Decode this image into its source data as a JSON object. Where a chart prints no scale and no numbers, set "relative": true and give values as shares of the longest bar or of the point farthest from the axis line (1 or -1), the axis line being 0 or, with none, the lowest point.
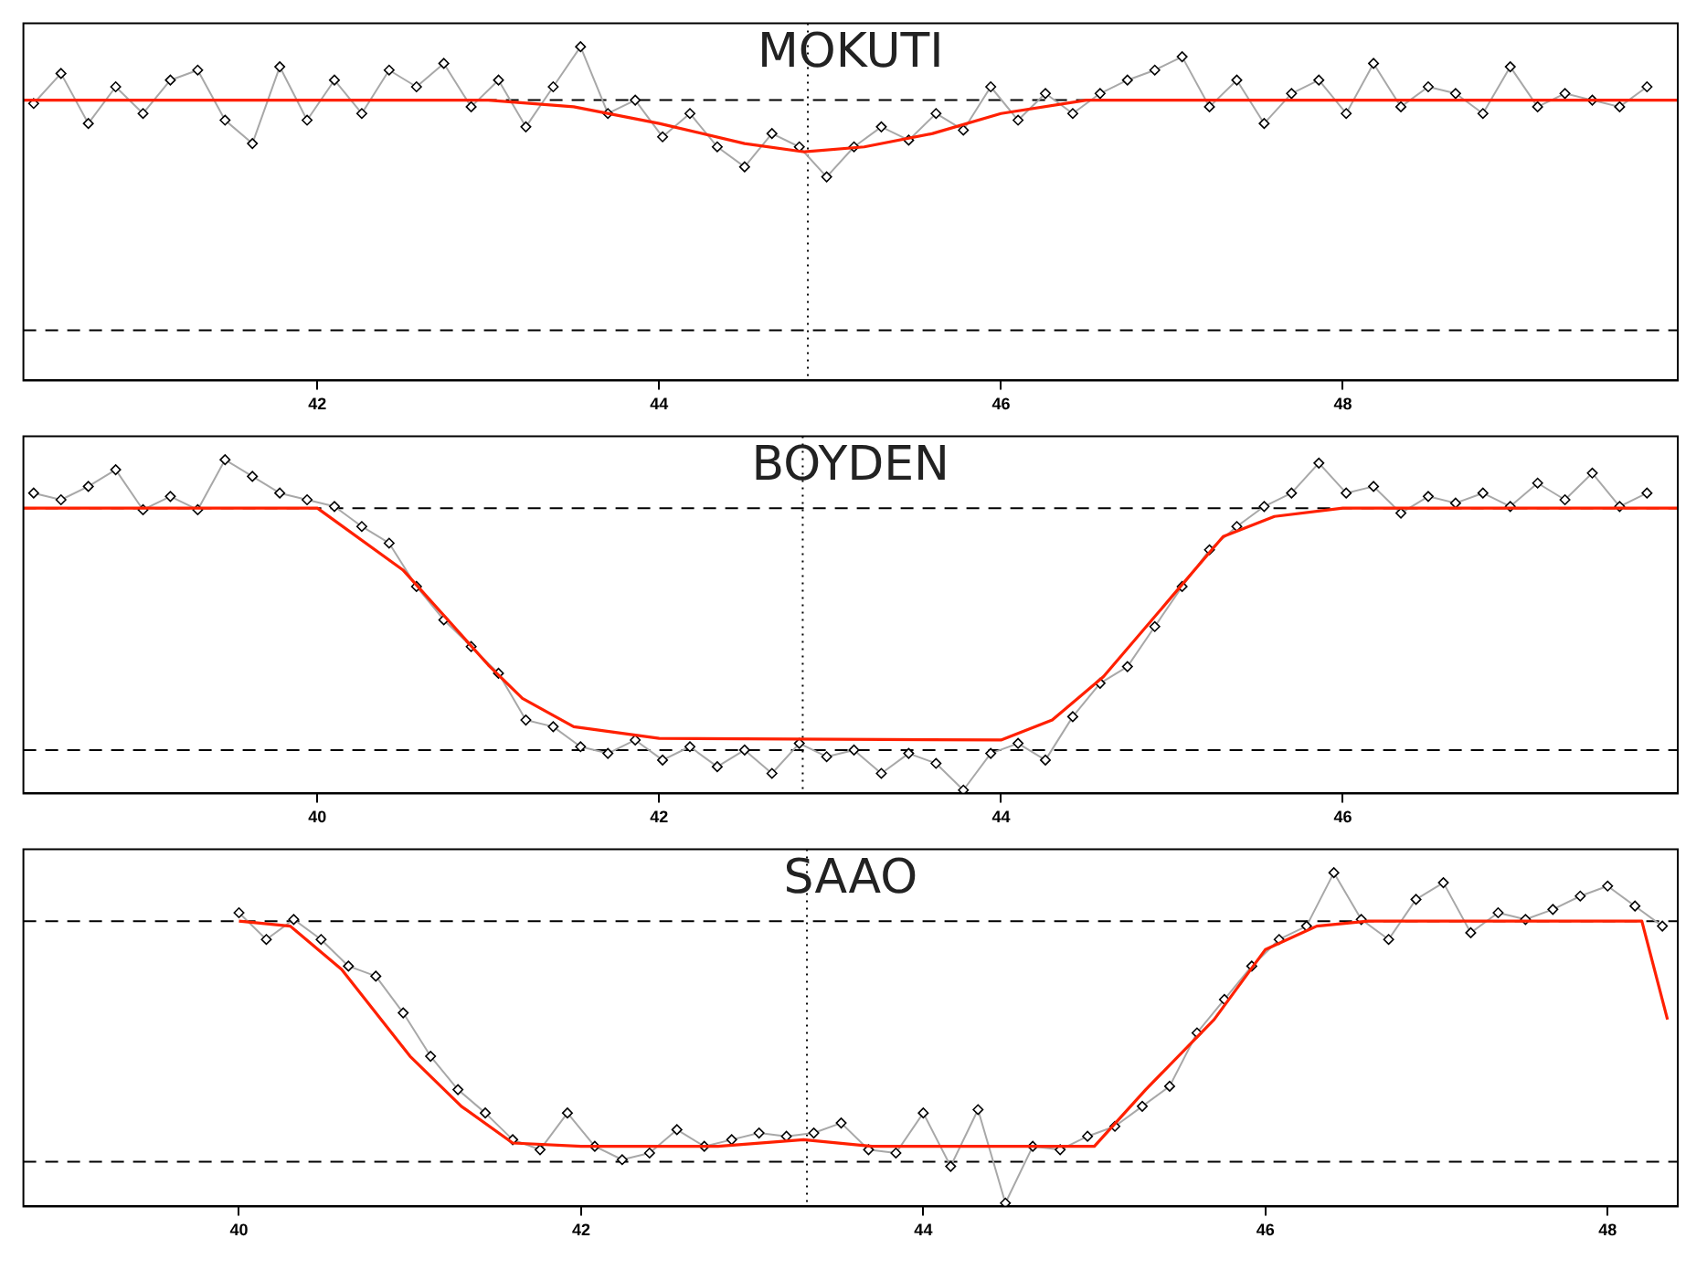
{
  "chart_data": [
    {
      "type": "line",
      "title": "MOKUTI",
      "relative": true,
      "xlim": [
        40.28,
        49.96
      ],
      "xticks": [
        42,
        44,
        46,
        48
      ],
      "grid": false,
      "legend": false,
      "tick_labels": "x",
      "series": [
        {
          "color": "#a8a8a8",
          "marker": "diamond",
          "x": [
            40.34,
            40.5,
            40.66,
            40.82,
            40.98,
            41.14,
            41.3,
            41.46,
            41.62,
            41.78,
            41.94,
            42.1,
            42.26,
            42.42,
            42.58,
            42.74,
            42.9,
            43.06,
            43.22,
            43.38,
            43.54,
            43.7,
            43.86,
            44.02,
            44.18,
            44.34,
            44.5,
            44.66,
            44.82,
            44.98,
            45.14,
            45.3,
            45.46,
            45.62,
            45.78,
            45.94,
            46.1,
            46.26,
            46.42,
            46.58,
            46.74,
            46.9,
            47.06,
            47.22,
            47.38,
            47.54,
            47.7,
            47.86,
            48.02,
            48.18,
            48.34,
            48.5,
            48.66,
            48.82,
            48.98,
            49.14,
            49.3,
            49.46,
            49.62,
            49.78
          ],
          "values": [
            0.83,
            0.92,
            0.77,
            0.88,
            0.8,
            0.9,
            0.93,
            0.78,
            0.71,
            0.94,
            0.78,
            0.9,
            0.8,
            0.93,
            0.88,
            0.95,
            0.82,
            0.9,
            0.76,
            0.88,
            1.0,
            0.8,
            0.84,
            0.73,
            0.8,
            0.7,
            0.64,
            0.74,
            0.7,
            0.61,
            0.7,
            0.76,
            0.72,
            0.8,
            0.75,
            0.88,
            0.78,
            0.86,
            0.8,
            0.86,
            0.9,
            0.93,
            0.97,
            0.82,
            0.9,
            0.77,
            0.86,
            0.9,
            0.8,
            0.95,
            0.82,
            0.88,
            0.86,
            0.8,
            0.94,
            0.82,
            0.86,
            0.84,
            0.82,
            0.88
          ]
        },
        {
          "color": "#ff2000",
          "marker": "none",
          "x": [
            40.28,
            43.0,
            43.5,
            44.0,
            44.5,
            44.85,
            45.2,
            45.6,
            46.0,
            46.5,
            49.96
          ],
          "values": [
            0.84,
            0.84,
            0.82,
            0.77,
            0.71,
            0.685,
            0.7,
            0.74,
            0.8,
            0.84,
            0.84
          ]
        }
      ],
      "ref_lines": [
        {
          "axis": "y",
          "value": 0.84,
          "line_style": "dashed",
          "color": "#000000"
        },
        {
          "axis": "y",
          "value": 0.15,
          "line_style": "dashed",
          "color": "#000000"
        },
        {
          "axis": "x",
          "value": 44.87,
          "line_style": "dotted",
          "color": "#000000"
        }
      ]
    },
    {
      "type": "line",
      "title": "BOYDEN",
      "relative": true,
      "xlim": [
        38.28,
        47.96
      ],
      "xticks": [
        40,
        42,
        44,
        46
      ],
      "grid": false,
      "legend": false,
      "tick_labels": "x",
      "series": [
        {
          "color": "#a8a8a8",
          "marker": "diamond",
          "x": [
            38.34,
            38.5,
            38.66,
            38.82,
            38.98,
            39.14,
            39.3,
            39.46,
            39.62,
            39.78,
            39.94,
            40.1,
            40.26,
            40.42,
            40.58,
            40.74,
            40.9,
            41.06,
            41.22,
            41.38,
            41.54,
            41.7,
            41.86,
            42.02,
            42.18,
            42.34,
            42.5,
            42.66,
            42.82,
            42.98,
            43.14,
            43.3,
            43.46,
            43.62,
            43.78,
            43.94,
            44.1,
            44.26,
            44.42,
            44.58,
            44.74,
            44.9,
            45.06,
            45.22,
            45.38,
            45.54,
            45.7,
            45.86,
            46.02,
            46.18,
            46.34,
            46.5,
            46.66,
            46.82,
            46.98,
            47.14,
            47.3,
            47.46,
            47.62,
            47.78
          ],
          "values": [
            0.9,
            0.88,
            0.92,
            0.97,
            0.85,
            0.89,
            0.85,
            1.0,
            0.95,
            0.9,
            0.88,
            0.86,
            0.8,
            0.75,
            0.62,
            0.52,
            0.44,
            0.36,
            0.22,
            0.2,
            0.14,
            0.12,
            0.16,
            0.1,
            0.14,
            0.08,
            0.13,
            0.06,
            0.15,
            0.11,
            0.13,
            0.06,
            0.12,
            0.09,
            0.01,
            0.12,
            0.15,
            0.1,
            0.23,
            0.33,
            0.38,
            0.5,
            0.62,
            0.73,
            0.8,
            0.86,
            0.9,
            0.99,
            0.9,
            0.92,
            0.84,
            0.89,
            0.87,
            0.9,
            0.86,
            0.93,
            0.88,
            0.96,
            0.86,
            0.9
          ]
        },
        {
          "color": "#ff2000",
          "marker": "none",
          "x": [
            38.28,
            40.0,
            40.5,
            41.0,
            41.2,
            41.5,
            42.0,
            44.0,
            44.3,
            44.6,
            45.0,
            45.3,
            45.6,
            46.0,
            47.96
          ],
          "values": [
            0.855,
            0.855,
            0.67,
            0.385,
            0.285,
            0.2,
            0.165,
            0.16,
            0.22,
            0.35,
            0.59,
            0.77,
            0.83,
            0.855,
            0.855
          ]
        }
      ],
      "ref_lines": [
        {
          "axis": "y",
          "value": 0.855,
          "line_style": "dashed",
          "color": "#000000"
        },
        {
          "axis": "y",
          "value": 0.13,
          "line_style": "dashed",
          "color": "#000000"
        },
        {
          "axis": "x",
          "value": 42.84,
          "line_style": "dotted",
          "color": "#000000"
        }
      ]
    },
    {
      "type": "line",
      "title": "SAAO",
      "relative": true,
      "xlim": [
        38.74,
        48.41
      ],
      "xticks": [
        40,
        42,
        44,
        46,
        48
      ],
      "grid": false,
      "legend": false,
      "tick_labels": "x",
      "series": [
        {
          "color": "#a8a8a8",
          "marker": "diamond",
          "x": [
            40.0,
            40.16,
            40.32,
            40.48,
            40.64,
            40.8,
            40.96,
            41.12,
            41.28,
            41.44,
            41.6,
            41.76,
            41.92,
            42.08,
            42.24,
            42.4,
            42.56,
            42.72,
            42.88,
            43.04,
            43.2,
            43.36,
            43.52,
            43.68,
            43.84,
            44.0,
            44.16,
            44.32,
            44.48,
            44.64,
            44.8,
            44.96,
            45.12,
            45.28,
            45.44,
            45.6,
            45.76,
            45.92,
            46.08,
            46.24,
            46.4,
            46.56,
            46.72,
            46.88,
            47.04,
            47.2,
            47.36,
            47.52,
            47.68,
            47.84,
            48.0,
            48.16,
            48.32
          ],
          "values": [
            0.88,
            0.8,
            0.86,
            0.8,
            0.72,
            0.69,
            0.58,
            0.45,
            0.35,
            0.28,
            0.2,
            0.17,
            0.28,
            0.18,
            0.14,
            0.16,
            0.23,
            0.18,
            0.2,
            0.22,
            0.21,
            0.22,
            0.25,
            0.17,
            0.16,
            0.28,
            0.12,
            0.29,
            0.01,
            0.18,
            0.17,
            0.21,
            0.24,
            0.3,
            0.36,
            0.52,
            0.62,
            0.72,
            0.8,
            0.84,
            1.0,
            0.86,
            0.8,
            0.92,
            0.97,
            0.82,
            0.88,
            0.86,
            0.89,
            0.93,
            0.96,
            0.9,
            0.84
          ]
        },
        {
          "color": "#ff2000",
          "marker": "none",
          "x": [
            40.0,
            40.3,
            40.6,
            41.0,
            41.3,
            41.6,
            42.0,
            42.8,
            43.3,
            43.7,
            45.0,
            45.3,
            45.7,
            46.0,
            46.3,
            46.6,
            48.2,
            48.35
          ],
          "values": [
            0.855,
            0.84,
            0.71,
            0.45,
            0.3,
            0.19,
            0.18,
            0.18,
            0.2,
            0.18,
            0.18,
            0.35,
            0.56,
            0.77,
            0.84,
            0.855,
            0.855,
            0.56
          ]
        }
      ],
      "ref_lines": [
        {
          "axis": "y",
          "value": 0.855,
          "line_style": "dashed",
          "color": "#000000"
        },
        {
          "axis": "y",
          "value": 0.134,
          "line_style": "dashed",
          "color": "#000000"
        },
        {
          "axis": "x",
          "value": 43.32,
          "line_style": "dotted",
          "color": "#000000"
        }
      ]
    }
  ]
}
